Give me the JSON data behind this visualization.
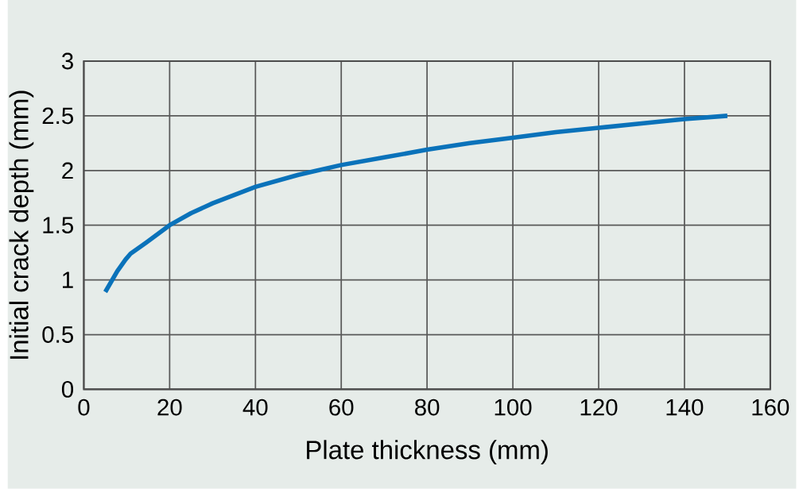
{
  "chart_data": {
    "type": "line",
    "xlabel": "Plate thickness (mm)",
    "ylabel": "Initial crack depth (mm)",
    "x": [
      5,
      7.8,
      9.7,
      10.9,
      14.5,
      20,
      25,
      30,
      40,
      50,
      60,
      70,
      80,
      90,
      100,
      110,
      120,
      130,
      140,
      150
    ],
    "series": [
      {
        "color": "#0a72ba",
        "values": [
          0.89,
          1.08,
          1.185,
          1.24,
          1.34,
          1.5,
          1.61,
          1.7,
          1.85,
          1.96,
          2.05,
          2.12,
          2.19,
          2.25,
          2.3,
          2.35,
          2.39,
          2.43,
          2.47,
          2.5
        ]
      }
    ],
    "xlim": [
      0,
      160
    ],
    "ylim": [
      0,
      3
    ],
    "xticks": [
      0,
      20,
      40,
      60,
      80,
      100,
      120,
      140,
      160
    ],
    "yticks": [
      0,
      0.5,
      1,
      1.5,
      2,
      2.5,
      3
    ],
    "grid": true,
    "marker": "none",
    "line_style": "solid"
  }
}
